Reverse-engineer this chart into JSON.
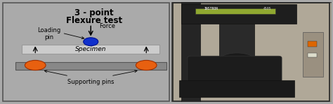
{
  "title_line1": "3 - point",
  "title_line2": "Flexure test",
  "label_loading_pin": "Loading\npin",
  "label_force": "Force",
  "label_specimen": "Specimen",
  "label_supporting": "Supporting pins",
  "bg_left": "#ffffff",
  "border_color": "#555555",
  "specimen_color": "#cccccc",
  "specimen_edge": "#999999",
  "platform_color": "#888888",
  "platform_edge": "#555555",
  "pin_orange": "#e86010",
  "pin_blue": "#1030cc",
  "pin_orange_edge": "#a03000",
  "pin_blue_edge": "#001090",
  "arrow_color": "#000000",
  "text_color": "#000000",
  "title_fontsize": 8.5,
  "label_fontsize": 6.0,
  "spec_fontsize": 6.5
}
